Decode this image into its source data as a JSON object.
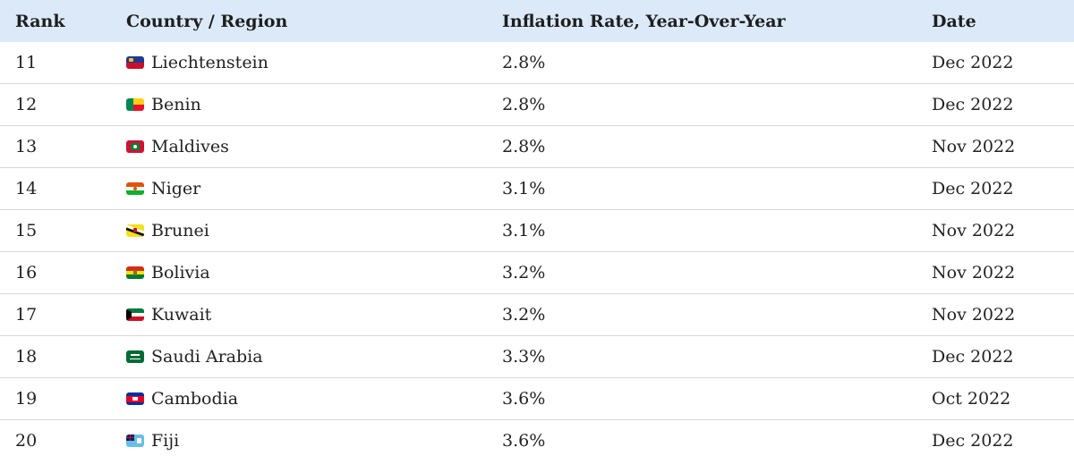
{
  "table": {
    "headers": {
      "rank": "Rank",
      "country": "Country / Region",
      "rate": "Inflation Rate, Year-Over-Year",
      "date": "Date"
    },
    "rows": [
      {
        "rank": "11",
        "country": "Liechtenstein",
        "flag": "liechtenstein-flag-icon",
        "rate": "2.8%",
        "date": "Dec 2022"
      },
      {
        "rank": "12",
        "country": "Benin",
        "flag": "benin-flag-icon",
        "rate": "2.8%",
        "date": "Dec 2022"
      },
      {
        "rank": "13",
        "country": "Maldives",
        "flag": "maldives-flag-icon",
        "rate": "2.8%",
        "date": "Nov 2022"
      },
      {
        "rank": "14",
        "country": "Niger",
        "flag": "niger-flag-icon",
        "rate": "3.1%",
        "date": "Dec 2022"
      },
      {
        "rank": "15",
        "country": "Brunei",
        "flag": "brunei-flag-icon",
        "rate": "3.1%",
        "date": "Nov 2022"
      },
      {
        "rank": "16",
        "country": "Bolivia",
        "flag": "bolivia-flag-icon",
        "rate": "3.2%",
        "date": "Nov 2022"
      },
      {
        "rank": "17",
        "country": "Kuwait",
        "flag": "kuwait-flag-icon",
        "rate": "3.2%",
        "date": "Nov 2022"
      },
      {
        "rank": "18",
        "country": "Saudi Arabia",
        "flag": "saudi-arabia-flag-icon",
        "rate": "3.3%",
        "date": "Dec 2022"
      },
      {
        "rank": "19",
        "country": "Cambodia",
        "flag": "cambodia-flag-icon",
        "rate": "3.6%",
        "date": "Oct 2022"
      },
      {
        "rank": "20",
        "country": "Fiji",
        "flag": "fiji-flag-icon",
        "rate": "3.6%",
        "date": "Dec 2022"
      }
    ]
  },
  "colors": {
    "header_bg": "#dbe9f8",
    "row_border": "#d9d9d9"
  }
}
